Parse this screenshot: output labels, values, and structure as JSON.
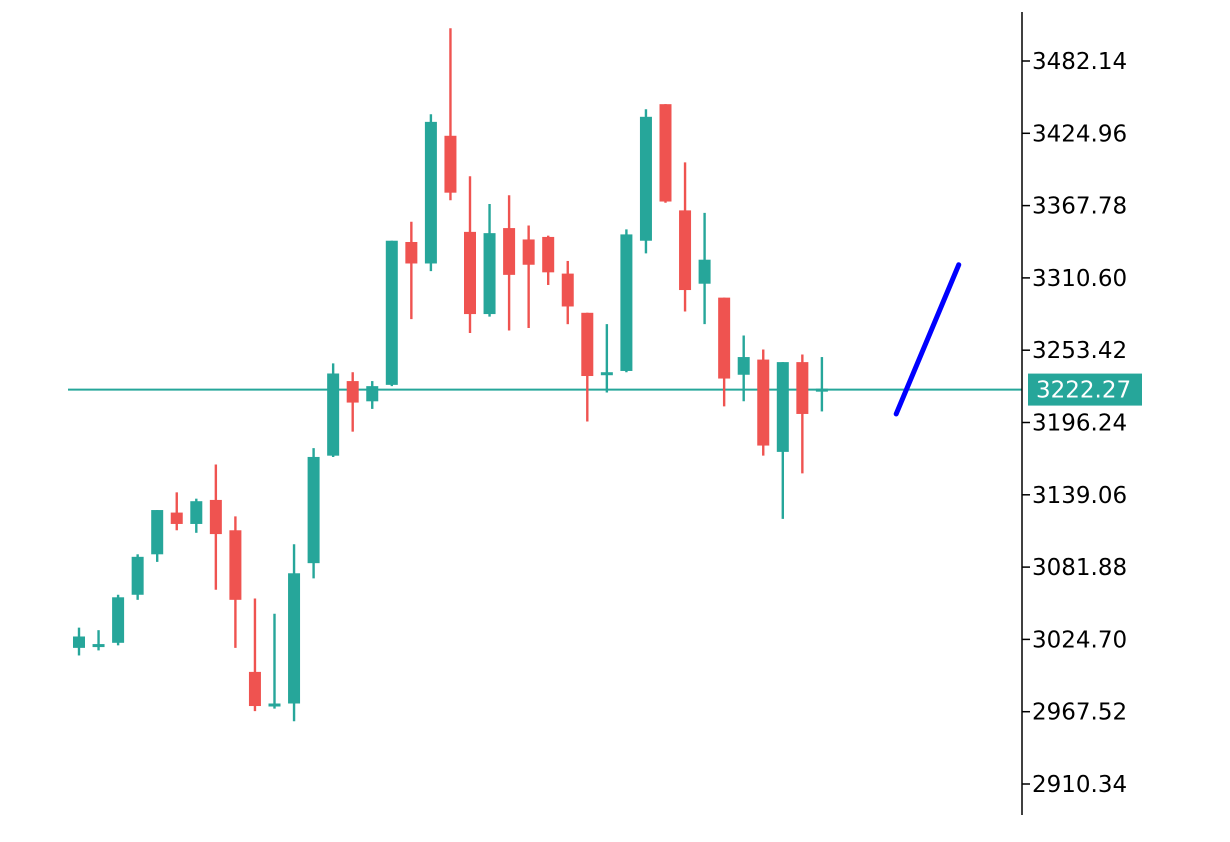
{
  "chart_data": {
    "type": "candlestick",
    "title": "",
    "xlabel": "",
    "ylabel": "",
    "ylim": [
      2880,
      3510
    ],
    "grid": false,
    "y_ticks": [
      "3482.14",
      "3424.96",
      "3367.78",
      "3310.60",
      "3253.42",
      "3196.24",
      "3139.06",
      "3081.88",
      "3024.70",
      "2967.52",
      "2910.34"
    ],
    "current_price": {
      "value": 3222.27,
      "label": "3222.27"
    },
    "colors": {
      "up": "#26a69a",
      "down": "#ef5350",
      "price_line": "#26a69a",
      "trend_line": "#0000ff",
      "axis": "#000000"
    },
    "candles": [
      {
        "open": 3018,
        "high": 3034,
        "low": 3012,
        "close": 3027
      },
      {
        "open": 3021,
        "high": 3032,
        "low": 3016,
        "close": 3021
      },
      {
        "open": 3022,
        "high": 3060,
        "low": 3020,
        "close": 3058
      },
      {
        "open": 3060,
        "high": 3092,
        "low": 3056,
        "close": 3090
      },
      {
        "open": 3092,
        "high": 3127,
        "low": 3086,
        "close": 3127
      },
      {
        "open": 3125,
        "high": 3141,
        "low": 3111,
        "close": 3116
      },
      {
        "open": 3116,
        "high": 3136,
        "low": 3109,
        "close": 3134
      },
      {
        "open": 3135,
        "high": 3163,
        "low": 3064,
        "close": 3108
      },
      {
        "open": 3111,
        "high": 3122,
        "low": 3018,
        "close": 3056
      },
      {
        "open": 2999,
        "high": 3057,
        "low": 2968,
        "close": 2972
      },
      {
        "open": 2974,
        "high": 3045,
        "low": 2970,
        "close": 2974
      },
      {
        "open": 2974,
        "high": 3100,
        "low": 2960,
        "close": 3077
      },
      {
        "open": 3085,
        "high": 3176,
        "low": 3073,
        "close": 3169
      },
      {
        "open": 3170,
        "high": 3243,
        "low": 3169,
        "close": 3235
      },
      {
        "open": 3229,
        "high": 3236,
        "low": 3189,
        "close": 3212
      },
      {
        "open": 3213,
        "high": 3229,
        "low": 3207,
        "close": 3225
      },
      {
        "open": 3226,
        "high": 3340,
        "low": 3225,
        "close": 3340
      },
      {
        "open": 3339,
        "high": 3355,
        "low": 3278,
        "close": 3322
      },
      {
        "open": 3322,
        "high": 3440,
        "low": 3316,
        "close": 3434
      },
      {
        "open": 3423,
        "high": 3508,
        "low": 3372,
        "close": 3378
      },
      {
        "open": 3347,
        "high": 3391,
        "low": 3267,
        "close": 3282
      },
      {
        "open": 3282,
        "high": 3369,
        "low": 3280,
        "close": 3346
      },
      {
        "open": 3350,
        "high": 3376,
        "low": 3269,
        "close": 3313
      },
      {
        "open": 3341,
        "high": 3352,
        "low": 3271,
        "close": 3321
      },
      {
        "open": 3343,
        "high": 3344,
        "low": 3305,
        "close": 3315
      },
      {
        "open": 3314,
        "high": 3324,
        "low": 3274,
        "close": 3288
      },
      {
        "open": 3283,
        "high": 3283,
        "low": 3197,
        "close": 3233
      },
      {
        "open": 3235,
        "high": 3274,
        "low": 3220,
        "close": 3236
      },
      {
        "open": 3237,
        "high": 3349,
        "low": 3236,
        "close": 3345
      },
      {
        "open": 3340,
        "high": 3444,
        "low": 3330,
        "close": 3438
      },
      {
        "open": 3448,
        "high": 3448,
        "low": 3370,
        "close": 3371
      },
      {
        "open": 3364,
        "high": 3402,
        "low": 3284,
        "close": 3301
      },
      {
        "open": 3306,
        "high": 3362,
        "low": 3274,
        "close": 3325
      },
      {
        "open": 3295,
        "high": 3295,
        "low": 3209,
        "close": 3231
      },
      {
        "open": 3234,
        "high": 3265,
        "low": 3213,
        "close": 3248
      },
      {
        "open": 3246,
        "high": 3254,
        "low": 3170,
        "close": 3178
      },
      {
        "open": 3173,
        "high": 3244,
        "low": 3120,
        "close": 3244
      },
      {
        "open": 3244,
        "high": 3250,
        "low": 3156,
        "close": 3203
      },
      {
        "open": 3221,
        "high": 3248,
        "low": 3205,
        "close": 3223
      }
    ],
    "trend_line": {
      "from": {
        "index": 41.8,
        "price": 3203
      },
      "to": {
        "index": 45.0,
        "price": 3321
      }
    }
  }
}
